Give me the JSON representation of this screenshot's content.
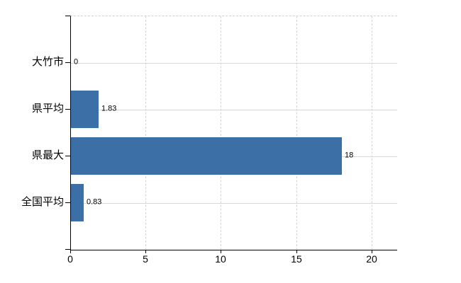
{
  "chart_data": {
    "type": "bar",
    "orientation": "horizontal",
    "title": "",
    "categories": [
      "大竹市",
      "県平均",
      "県最大",
      "全国平均"
    ],
    "values": [
      0,
      1.83,
      18,
      0.83
    ],
    "value_labels": [
      "0",
      "1.83",
      "18",
      "0.83"
    ],
    "x_ticks": [
      0,
      5,
      10,
      15,
      20
    ],
    "xlim": [
      0,
      21.65
    ],
    "grid": true,
    "legend": false,
    "colors": {
      "bar": "#3c6fa6",
      "axis": "#000000",
      "h_grid": "#d4dad4",
      "v_grid": "#d8d2d6",
      "plot_top_border": "#d1d0d1",
      "text": "#000000"
    }
  }
}
